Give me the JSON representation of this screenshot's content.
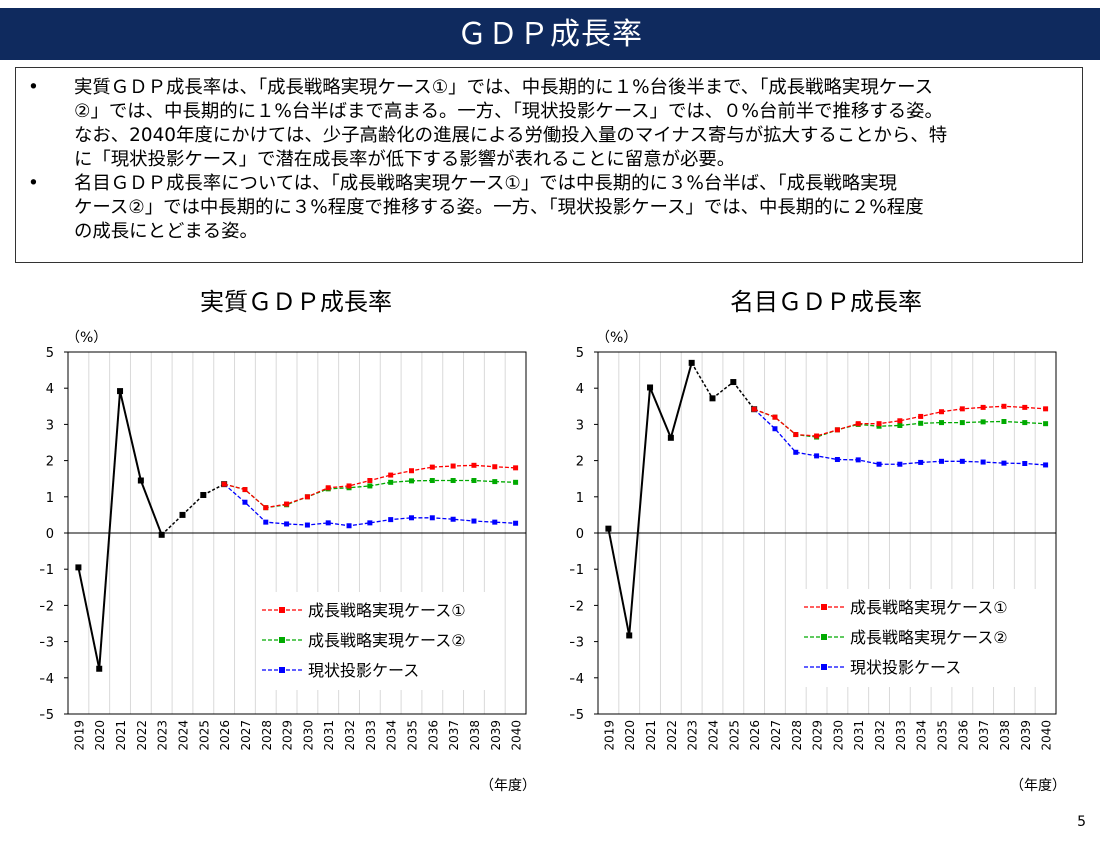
{
  "page": {
    "title": "ＧＤＰ成長率",
    "page_number": "5"
  },
  "summary": {
    "bullets": [
      {
        "marker": "•",
        "text": "実質ＧＤＰ成長率は、「成長戦略実現ケース①」では、中長期的に１%台後半まで、「成長戦略実現ケース\n②」では、中長期的に１%台半ばまで高まる。一方、「現状投影ケース」では、０%台前半で推移する姿。\nなお、2040年度にかけては、少子高齢化の進展による労働投入量のマイナス寄与が拡大することから、特\nに「現状投影ケース」で潜在成長率が低下する影響が表れることに留意が必要。"
      },
      {
        "marker": "•",
        "text": "名目ＧＤＰ成長率については、「成長戦略実現ケース①」では中長期的に３%台半ば、「成長戦略実現\nケース②」では中長期的に３%程度で推移する姿。一方、「現状投影ケース」では、中長期的に２%程度\nの成長にとどまる姿。"
      }
    ]
  },
  "chart_data": [
    {
      "type": "line",
      "title": "実質ＧＤＰ成長率",
      "ylabel": "（%）",
      "xlabel": "（年度）",
      "ylim": [
        -5,
        5
      ],
      "yticks": [
        "5",
        "4",
        "3",
        "2",
        "1",
        "0",
        "−1",
        "−2",
        "−3",
        "−4",
        "−5"
      ],
      "x": [
        "2019",
        "2020",
        "2021",
        "2022",
        "2023",
        "2024",
        "2025",
        "2026",
        "2027",
        "2028",
        "2029",
        "2030",
        "2031",
        "2032",
        "2033",
        "2034",
        "2035",
        "2036",
        "2037",
        "2038",
        "2039",
        "2040"
      ],
      "grid": true,
      "legend_position": "bottom-right",
      "historical": {
        "values": [
          -0.95,
          -3.75,
          3.92,
          1.45,
          -0.05,
          0.5,
          1.05,
          1.35
        ],
        "color": "#000000"
      },
      "series": [
        {
          "name": "成長戦略実現ケース①",
          "color": "#ff0000",
          "values": [
            null,
            null,
            null,
            null,
            null,
            null,
            null,
            1.35,
            1.2,
            0.7,
            0.8,
            1.0,
            1.25,
            1.3,
            1.45,
            1.6,
            1.72,
            1.82,
            1.85,
            1.87,
            1.83,
            1.8
          ]
        },
        {
          "name": "成長戦略実現ケース②",
          "color": "#00aa00",
          "values": [
            null,
            null,
            null,
            null,
            null,
            null,
            null,
            1.35,
            1.2,
            0.7,
            0.78,
            1.0,
            1.22,
            1.25,
            1.3,
            1.4,
            1.44,
            1.45,
            1.45,
            1.45,
            1.42,
            1.4
          ]
        },
        {
          "name": "現状投影ケース",
          "color": "#0000ff",
          "values": [
            null,
            null,
            null,
            null,
            null,
            null,
            null,
            1.35,
            0.85,
            0.3,
            0.25,
            0.22,
            0.28,
            0.2,
            0.28,
            0.37,
            0.42,
            0.42,
            0.38,
            0.33,
            0.3,
            0.27
          ]
        }
      ]
    },
    {
      "type": "line",
      "title": "名目ＧＤＰ成長率",
      "ylabel": "（%）",
      "xlabel": "（年度）",
      "ylim": [
        -5,
        5
      ],
      "yticks": [
        "5",
        "4",
        "3",
        "2",
        "1",
        "0",
        "−1",
        "−2",
        "−3",
        "−4",
        "−5"
      ],
      "x": [
        "2019",
        "2020",
        "2021",
        "2022",
        "2023",
        "2024",
        "2025",
        "2026",
        "2027",
        "2028",
        "2029",
        "2030",
        "2031",
        "2032",
        "2033",
        "2034",
        "2035",
        "2036",
        "2037",
        "2038",
        "2039",
        "2040"
      ],
      "grid": true,
      "legend_position": "bottom-right",
      "historical": {
        "values": [
          0.12,
          -2.83,
          4.02,
          2.63,
          4.7,
          3.72,
          4.17,
          3.42
        ],
        "color": "#000000"
      },
      "series": [
        {
          "name": "成長戦略実現ケース①",
          "color": "#ff0000",
          "values": [
            null,
            null,
            null,
            null,
            null,
            null,
            null,
            3.42,
            3.2,
            2.72,
            2.68,
            2.85,
            3.02,
            3.02,
            3.1,
            3.22,
            3.35,
            3.43,
            3.47,
            3.5,
            3.47,
            3.43
          ]
        },
        {
          "name": "成長戦略実現ケース②",
          "color": "#00aa00",
          "values": [
            null,
            null,
            null,
            null,
            null,
            null,
            null,
            3.42,
            3.2,
            2.72,
            2.65,
            2.85,
            3.0,
            2.95,
            2.97,
            3.03,
            3.05,
            3.05,
            3.07,
            3.08,
            3.05,
            3.02
          ]
        },
        {
          "name": "現状投影ケース",
          "color": "#0000ff",
          "values": [
            null,
            null,
            null,
            null,
            null,
            null,
            null,
            3.42,
            2.88,
            2.23,
            2.13,
            2.03,
            2.02,
            1.9,
            1.9,
            1.95,
            1.98,
            1.98,
            1.96,
            1.93,
            1.92,
            1.88
          ]
        }
      ]
    }
  ]
}
